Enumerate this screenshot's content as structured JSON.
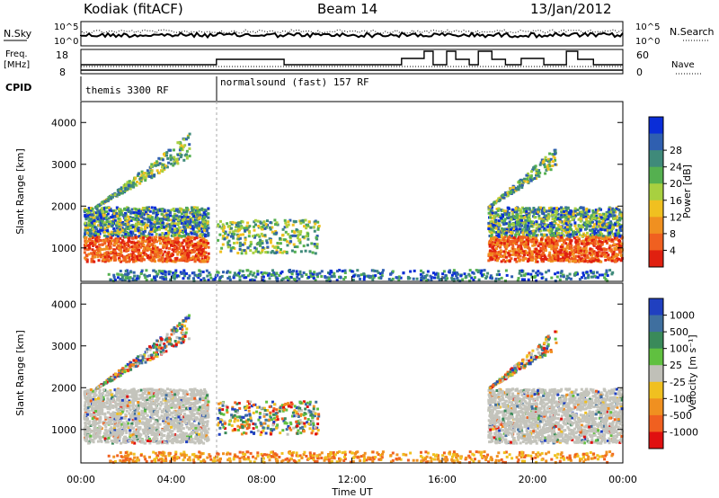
{
  "header": {
    "station": "Kodiak (fitACF)",
    "beam": "Beam 14",
    "date": "13/Jan/2012"
  },
  "top_panels": {
    "nsky_label": "N.Sky",
    "nsearch_label": "N.Search",
    "log_top": "10^5",
    "log_bottom": "10^0",
    "freq_label_1": "Freq.",
    "freq_label_2": "[MHz]",
    "freq_top": "18",
    "freq_bottom": "8",
    "nave_label": "Nave",
    "nave_top": "60",
    "nave_bottom": "0",
    "cpid_label": "CPID",
    "cpid_1": "themis 3300 RF",
    "cpid_2": "normalsound (fast) 157 RF"
  },
  "chart_data": [
    {
      "type": "heatmap",
      "name": "power-panel",
      "ylabel": "Slant Range [km]",
      "yticks": [
        "1000",
        "2000",
        "3000",
        "4000"
      ],
      "ylim": [
        200,
        4500
      ],
      "xlim": [
        0,
        24
      ],
      "colorbar": {
        "label": "Power [dB]",
        "ticks": [
          "4",
          "8",
          "12",
          "16",
          "20",
          "24",
          "28"
        ],
        "colors": [
          "#0a2dd8",
          "#2f5fb0",
          "#3f8a7a",
          "#55b050",
          "#a8d040",
          "#f0c020",
          "#f09020",
          "#f06020",
          "#e02010"
        ]
      }
    },
    {
      "type": "heatmap",
      "name": "velocity-panel",
      "ylabel": "Slant Range [km]",
      "yticks": [
        "1000",
        "2000",
        "3000",
        "4000"
      ],
      "ylim": [
        200,
        4500
      ],
      "xlim": [
        0,
        24
      ],
      "colorbar": {
        "label": "Velocity [m s⁻¹]",
        "ticks": [
          "1000",
          "500",
          "100",
          "25",
          "-25",
          "-100",
          "-500",
          "-1000"
        ],
        "colors": [
          "#2040c0",
          "#3f6f9f",
          "#3a8a5a",
          "#60c040",
          "#c0c0b8",
          "#f0c020",
          "#f09020",
          "#f06020",
          "#e01010"
        ]
      }
    }
  ],
  "xaxis": {
    "ticks": [
      "00:00",
      "04:00",
      "08:00",
      "12:00",
      "16:00",
      "20:00",
      "00:00"
    ],
    "label": "Time UT"
  },
  "colors": {
    "axis": "#000000",
    "scatter_gray": "#c4c4bc"
  }
}
